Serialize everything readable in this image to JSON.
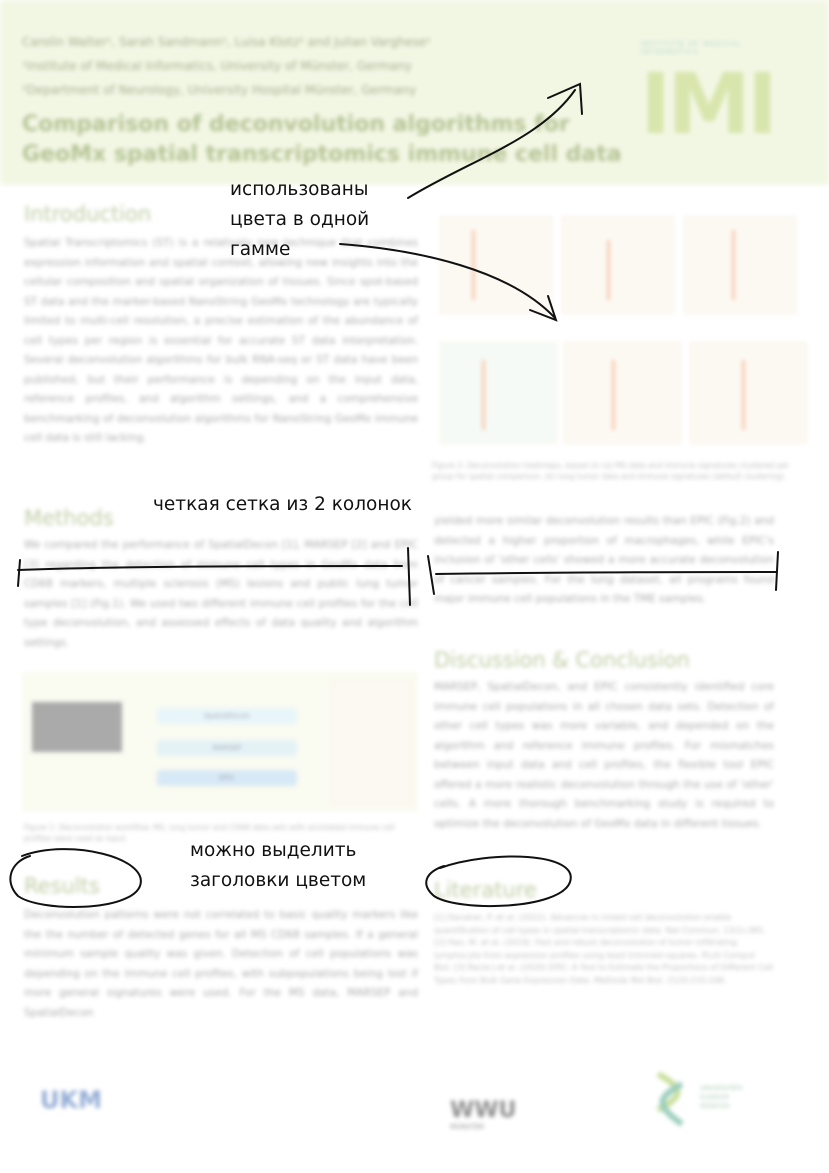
{
  "poster": {
    "authors": [
      "Carolin Walter¹, Sarah Sandmann¹, Luisa Klotz² and Julian Varghese¹",
      "¹Institute of Medical Informatics, University of Münster, Germany",
      "²Department of Neurology, University Hospital Münster, Germany"
    ],
    "title": "Comparison of deconvolution algorithms for GeoMx spatial transcriptomics immune cell data",
    "logo_small_text": "INSTITUTE OF MEDICAL INFORMATICS",
    "logo_text": "IMI",
    "sections": {
      "introduction": {
        "title": "Introduction",
        "text": "Spatial Transcriptomics (ST) is a relatively new technique that combines expression information and spatial context, allowing new insights into the cellular composition and spatial organization of tissues. Since spot-based ST data and the marker-based NanoString GeoMx technology are typically limited to multi-cell resolution, a precise estimation of the abundance of cell types per region is essential for accurate ST data interpretation. Several deconvolution algorithms for bulk RNA-seq or ST data have been published, but their performance is depending on the input data, reference profiles, and algorithm settings, and a comprehensive benchmarking of deconvolution algorithms for NanoString GeoMx immune cell data is still lacking."
      },
      "methods": {
        "title": "Methods",
        "text": "We compared the performance of SpatialDecon [1], MARSEP [2] and EPIC [3] regarding the detection of immune cell types in GeoMx data from CD68 markers, multiple sclerosis (MS) lesions and public lung tumor samples [1] (Fig.1). We used two different immune cell profiles for the cell type deconvolution, and assessed effects of data quality and algorithm settings."
      },
      "results": {
        "title": "Results",
        "text_left": "Deconvolution patterns were not correlated to basic quality markers like the the number of detected genes for all MS CD68 samples. If a general minimum sample quality was given. Detection of cell populations was depending on the immune cell profiles, with subpopulations being lost if more general signatures were used. For the MS data, MARSEP and SpatialDecon",
        "text_right": "yielded more similar deconvolution results than EPIC (Fig.2) and detected a higher proportion of macrophages, while EPIC's inclusion of 'other cells' showed a more accurate deconvolution of cancer samples. For the lung dataset, all programs found major immune cell populations in the TME samples."
      },
      "discussion": {
        "title": "Discussion & Conclusion",
        "text": "MARSEP, SpatialDecon, and EPIC consistently identified core immune cell populations in all chosen data sets. Detection of other cell types was more variable, and depended on the algorithm and reference immune profiles. For mismatches between input data and cell profiles, the flexible tool EPIC offered a more realistic deconvolution through the use of 'other' cells. A more thorough benchmarking study is required to optimize the deconvolution of GeoMx data in different tissues."
      },
      "literature": {
        "title": "Literature",
        "text": "[1] Danaher, P. et al. (2022). Advances in mixed cell deconvolution enable quantification of cell types in spatial transcriptomic data. Nat Commun, 13(1):385. [2] Hao, M. et al. (2019). Fast and robust deconvolution of tumor infiltrating lymphocyte from expression profiles using least trimmed squares. PLoS Comput Biol. [3] Racle J et al. (2020) EPIC: A Tool to Estimate the Proportions of Different Cell Types from Bulk Gene Expression Data. Methods Mol Biol. 2120:233-248."
      }
    },
    "figure1": {
      "labels": [
        "SpatialDecon",
        "MARSEP",
        "EPIC"
      ],
      "caption": "Figure 1: Deconvolution workflow. MS, lung tumor and CD68 data sets with annotated immune cell profiles were used as input."
    },
    "figure2": {
      "caption": "Figure 2: Deconvolution heatmaps, based on (a) MS data and immune signatures clustered per group for spatial comparison, (b) lung tumor data and immune signatures (default clustering)."
    },
    "footer": {
      "logo_left": "UKM",
      "logo_middle": "WWU",
      "logo_middle_sub": "MÜNSTER",
      "logo_right": [
        "UNIVERSITÄTS",
        "KLINIKUM",
        "MÜNSTER"
      ]
    }
  },
  "annotations": {
    "note_colors": [
      "использованы",
      "цвета в одной",
      "гамме"
    ],
    "note_grid": "четкая сетка из 2 колонок",
    "note_headings": [
      "можно выделить",
      "заголовки цветом"
    ]
  },
  "colors": {
    "header_bg": "#e9f1cf",
    "heading_green": "#8da35a",
    "ink": "#111111"
  }
}
